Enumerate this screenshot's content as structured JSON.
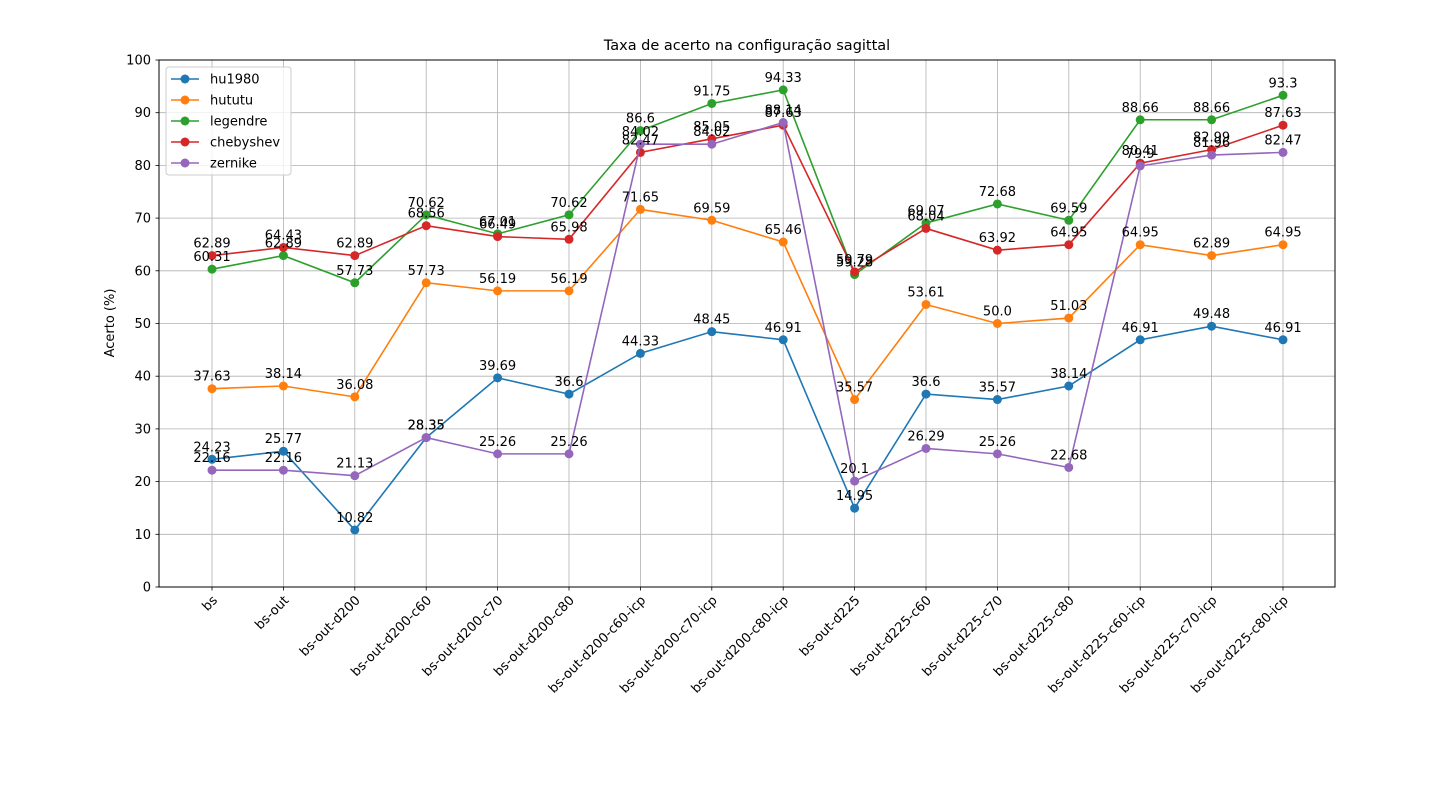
{
  "chart_data": {
    "type": "line",
    "title": "Taxa de acerto na configuração sagittal",
    "xlabel": "",
    "ylabel": "Acerto (%)",
    "ylim": [
      0,
      100
    ],
    "yticks": [
      "0",
      "10",
      "20",
      "30",
      "40",
      "50",
      "60",
      "70",
      "80",
      "90",
      "100"
    ],
    "grid": true,
    "legend_position": "top-left",
    "categories": [
      "bs",
      "bs-out",
      "bs-out-d200",
      "bs-out-d200-c60",
      "bs-out-d200-c70",
      "bs-out-d200-c80",
      "bs-out-d200-c60-icp",
      "bs-out-d200-c70-icp",
      "bs-out-d200-c80-icp",
      "bs-out-d225",
      "bs-out-d225-c60",
      "bs-out-d225-c70",
      "bs-out-d225-c80",
      "bs-out-d225-c60-icp",
      "bs-out-d225-c70-icp",
      "bs-out-d225-c80-icp"
    ],
    "series": [
      {
        "name": "hu1980",
        "color": "#1f77b4",
        "values": [
          24.23,
          25.77,
          10.82,
          28.35,
          39.69,
          36.6,
          44.33,
          48.45,
          46.91,
          14.95,
          36.6,
          35.57,
          38.14,
          46.91,
          49.48,
          46.91
        ],
        "labels": [
          "24.23",
          "25.77",
          "10.82",
          "28.35",
          "39.69",
          "36.6",
          "44.33",
          "48.45",
          "46.91",
          "14.95",
          "36.6",
          "35.57",
          "38.14",
          "46.91",
          "49.48",
          "46.91"
        ]
      },
      {
        "name": "hututu",
        "color": "#ff7f0e",
        "values": [
          37.63,
          38.14,
          36.08,
          57.73,
          56.19,
          56.19,
          71.65,
          69.59,
          65.46,
          35.57,
          53.61,
          50.0,
          51.03,
          64.95,
          62.89,
          64.95
        ],
        "labels": [
          "37.63",
          "38.14",
          "36.08",
          "57.73",
          "56.19",
          "56.19",
          "71.65",
          "69.59",
          "65.46",
          "35.57",
          "53.61",
          "50.0",
          "51.03",
          "64.95",
          "62.89",
          "64.95"
        ]
      },
      {
        "name": "legendre",
        "color": "#2ca02c",
        "values": [
          60.31,
          62.89,
          57.73,
          70.62,
          67.01,
          70.62,
          86.6,
          91.75,
          94.33,
          59.28,
          69.07,
          72.68,
          69.59,
          88.66,
          88.66,
          93.3
        ],
        "labels": [
          "60.31",
          "62.89",
          "57.73",
          "70.62",
          "67.01",
          "70.62",
          "86.6",
          "91.75",
          "94.33",
          "59.28",
          "69.07",
          "72.68",
          "69.59",
          "88.66",
          "88.66",
          "93.3"
        ]
      },
      {
        "name": "chebyshev",
        "color": "#d62728",
        "values": [
          62.89,
          64.43,
          62.89,
          68.56,
          66.49,
          65.98,
          82.47,
          85.05,
          87.63,
          59.79,
          68.04,
          63.92,
          64.95,
          80.41,
          82.99,
          87.63
        ],
        "labels": [
          "62.89",
          "64.43",
          "62.89",
          "68.56",
          "66.49",
          "65.98",
          "82.47",
          "85.05",
          "87.63",
          "59.79",
          "68.04",
          "63.92",
          "64.95",
          "80.41",
          "82.99",
          "87.63"
        ]
      },
      {
        "name": "zernike",
        "color": "#9467bd",
        "values": [
          22.16,
          22.16,
          21.13,
          28.35,
          25.26,
          25.26,
          84.02,
          84.02,
          88.14,
          20.1,
          26.29,
          25.26,
          22.68,
          79.9,
          81.96,
          82.47
        ],
        "labels": [
          "22.16",
          "22.16",
          "21.13",
          "28.35",
          "25.26",
          "25.26",
          "84.02",
          "84.02",
          "88.14",
          "20.1",
          "26.29",
          "25.26",
          "22.68",
          "79.9",
          "81.96",
          "82.47"
        ]
      }
    ]
  }
}
